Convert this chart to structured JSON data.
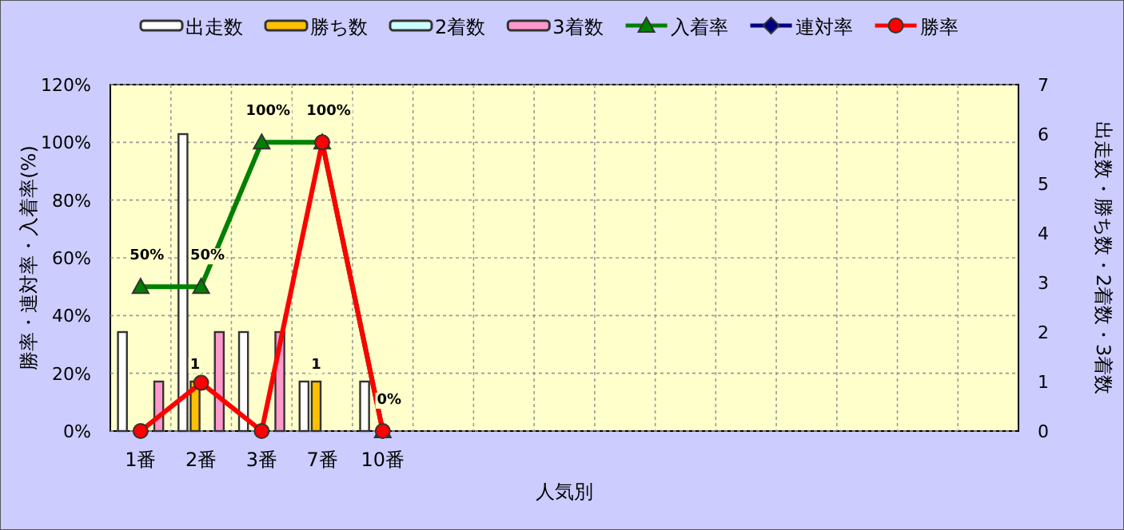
{
  "chart_data": {
    "type": "bar",
    "xlabel": "人気別",
    "ylabel": "勝率・連対率・入着率(%)",
    "y2label": "出走数・勝ち数・2着数・3着数",
    "categories": [
      "1番",
      "2番",
      "3番",
      "7番",
      "10番",
      null,
      null,
      null,
      null,
      null,
      null,
      null,
      null,
      null,
      null
    ],
    "series": [
      {
        "name": "出走数",
        "axis": "y2",
        "color": "#ffffff",
        "values": [
          2,
          6,
          2,
          1,
          1,
          null,
          null,
          null,
          null,
          null,
          null,
          null,
          null,
          null,
          null
        ]
      },
      {
        "name": "勝ち数",
        "axis": "y2",
        "color": "#ffc000",
        "values": [
          0,
          1,
          0,
          1,
          0,
          null,
          null,
          null,
          null,
          null,
          null,
          null,
          null,
          null,
          null
        ],
        "value_labels": [
          null,
          "1",
          null,
          "1",
          null,
          null,
          null,
          null,
          null,
          null,
          null,
          null,
          null,
          null,
          null
        ]
      },
      {
        "name": "2着数",
        "axis": "y2",
        "color": "#ccffff",
        "values": [
          0,
          0,
          0,
          0,
          0,
          null,
          null,
          null,
          null,
          null,
          null,
          null,
          null,
          null,
          null
        ]
      },
      {
        "name": "3着数",
        "axis": "y2",
        "color": "#ff99cc",
        "values": [
          1,
          2,
          2,
          0,
          0,
          null,
          null,
          null,
          null,
          null,
          null,
          null,
          null,
          null,
          null
        ]
      },
      {
        "name": "入着率",
        "type": "line",
        "axis": "y",
        "color": "#008000",
        "marker": "triangle",
        "values": [
          50,
          50,
          100,
          100,
          0,
          null,
          null,
          null,
          null,
          null,
          null,
          null,
          null,
          null,
          null
        ],
        "value_labels": [
          "50%",
          "50%",
          "100%",
          "100%",
          "0%",
          null,
          null,
          null,
          null,
          null,
          null,
          null,
          null,
          null,
          null
        ]
      },
      {
        "name": "連対率",
        "type": "line",
        "axis": "y",
        "color": "#000080",
        "marker": "diamond",
        "values": [
          null,
          null,
          null,
          null,
          null,
          null,
          null,
          null,
          null,
          null,
          null,
          null,
          null,
          null,
          null
        ]
      },
      {
        "name": "勝率",
        "type": "line",
        "axis": "y",
        "color": "#ff0000",
        "marker": "circle",
        "values": [
          0,
          16.7,
          0,
          100,
          0,
          null,
          null,
          null,
          null,
          null,
          null,
          null,
          null,
          null,
          null
        ]
      }
    ],
    "ylim": [
      0,
      120
    ],
    "yticks": [
      {
        "value": 0,
        "label": "0%"
      },
      {
        "value": 20,
        "label": "20%"
      },
      {
        "value": 40,
        "label": "40%"
      },
      {
        "value": 60,
        "label": "60%"
      },
      {
        "value": 80,
        "label": "80%"
      },
      {
        "value": 100,
        "label": "100%"
      },
      {
        "value": 120,
        "label": "120%"
      }
    ],
    "y2lim": [
      0,
      7
    ],
    "y2ticks": [
      0,
      1,
      2,
      3,
      4,
      5,
      6,
      7
    ],
    "grid": true,
    "legend": "top"
  }
}
